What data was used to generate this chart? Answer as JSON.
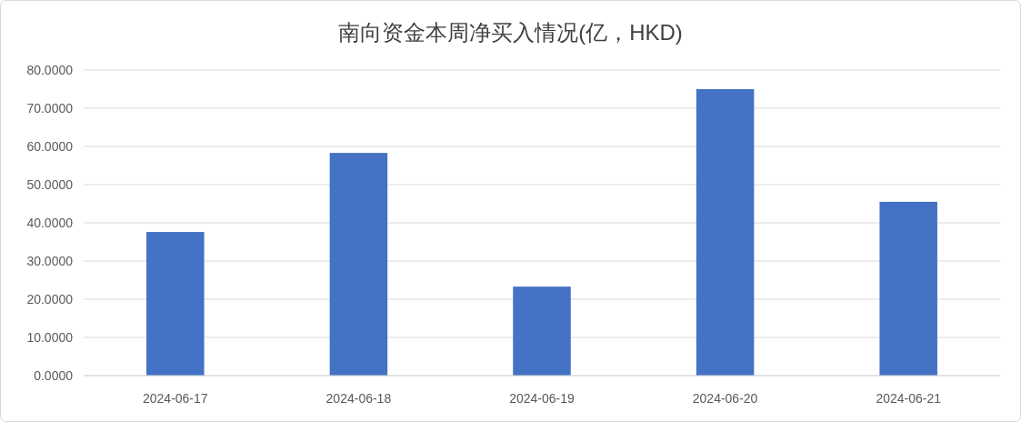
{
  "chart_data": {
    "type": "bar",
    "title": "南向资金本周净买入情况(亿，HKD)",
    "categories": [
      "2024-06-17",
      "2024-06-18",
      "2024-06-19",
      "2024-06-20",
      "2024-06-21"
    ],
    "values": [
      37.6,
      58.3,
      23.3,
      75.0,
      45.5
    ],
    "color": "#4472c4",
    "ylim": [
      0,
      80
    ],
    "yticks": [
      {
        "value": 0,
        "label": "0.0000"
      },
      {
        "value": 10,
        "label": "10.0000"
      },
      {
        "value": 20,
        "label": "20.0000"
      },
      {
        "value": 30,
        "label": "30.0000"
      },
      {
        "value": 40,
        "label": "40.0000"
      },
      {
        "value": 50,
        "label": "50.0000"
      },
      {
        "value": 60,
        "label": "60.0000"
      },
      {
        "value": 70,
        "label": "70.0000"
      },
      {
        "value": 80,
        "label": "80.0000"
      }
    ],
    "grid": "y"
  }
}
